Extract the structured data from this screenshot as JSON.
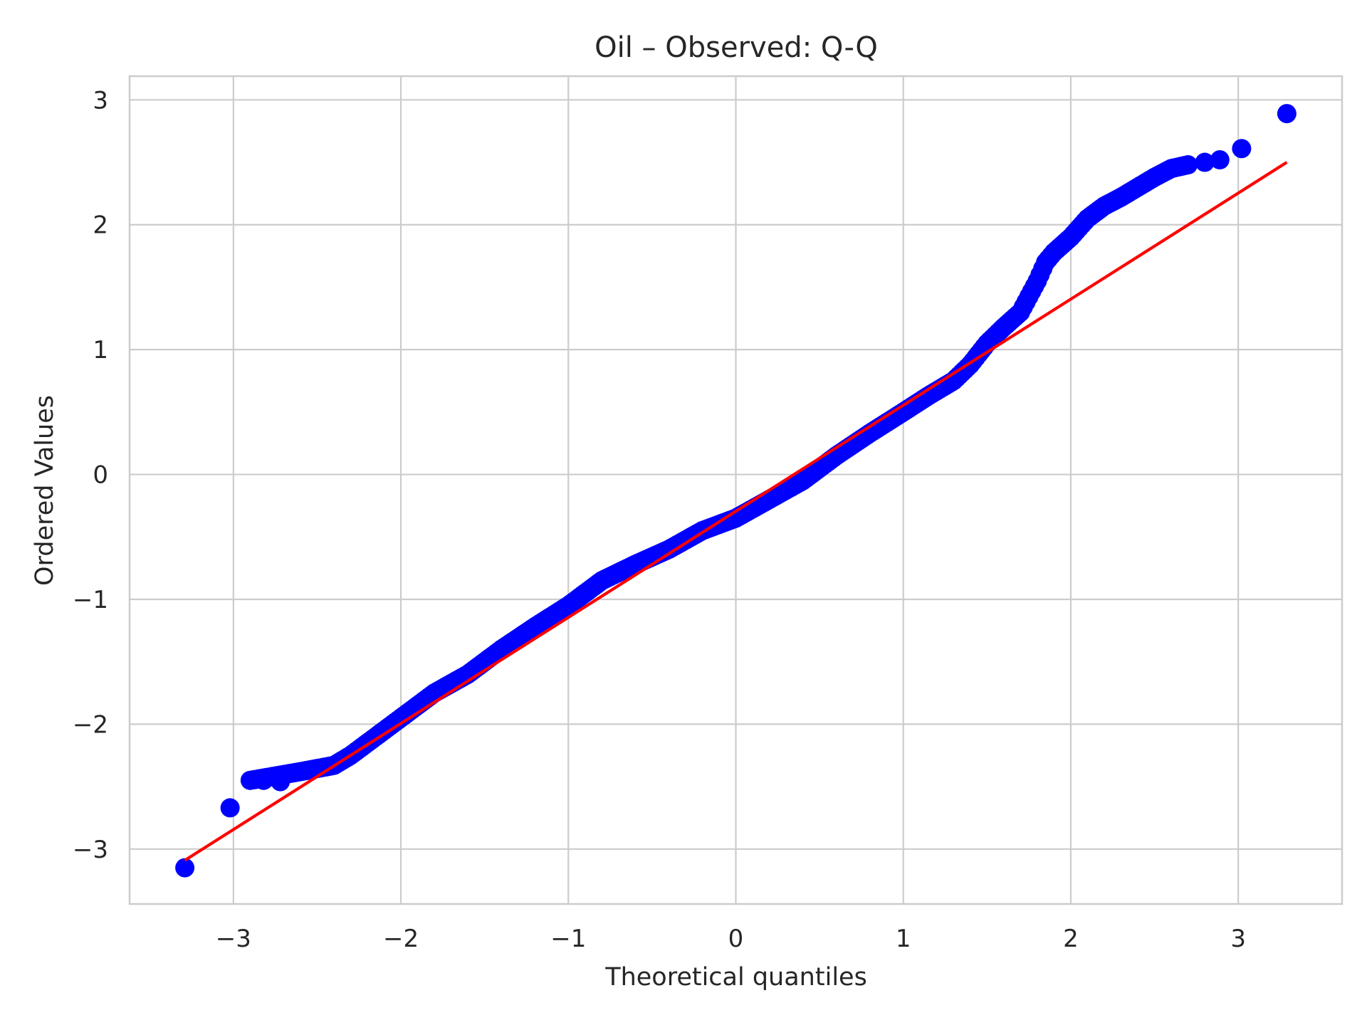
{
  "chart_data": {
    "type": "scatter",
    "title": "Oil – Observed: Q-Q",
    "xlabel": "Theoretical quantiles",
    "ylabel": "Ordered Values",
    "xlim": [
      -3.62,
      3.62
    ],
    "ylim": [
      -3.44,
      3.19
    ],
    "xticks": [
      -3,
      -2,
      -1,
      0,
      1,
      2,
      3
    ],
    "yticks": [
      -3,
      -2,
      -1,
      0,
      1,
      2,
      3
    ],
    "xtick_labels": [
      "−3",
      "−2",
      "−1",
      "0",
      "1",
      "2",
      "3"
    ],
    "ytick_labels": [
      "−3",
      "−2",
      "−1",
      "0",
      "1",
      "2",
      "3"
    ],
    "grid": true,
    "marker_color": "#0000ff",
    "line_color": "#ff0000",
    "fit_line": {
      "x": [
        -3.29,
        3.29
      ],
      "y": [
        -3.09,
        2.5
      ]
    },
    "points_curve": {
      "x": [
        -2.9,
        -2.6,
        -2.4,
        -2.3,
        -2.2,
        -2.0,
        -1.8,
        -1.6,
        -1.5,
        -1.4,
        -1.2,
        -1.0,
        -0.8,
        -0.6,
        -0.4,
        -0.2,
        0.0,
        0.2,
        0.4,
        0.6,
        0.8,
        1.0,
        1.15,
        1.3,
        1.4,
        1.5,
        1.6,
        1.7,
        1.8,
        1.85,
        1.9,
        2.0,
        2.1,
        2.2,
        2.3,
        2.4,
        2.5,
        2.6,
        2.7
      ],
      "y": [
        -2.45,
        -2.38,
        -2.33,
        -2.25,
        -2.15,
        -1.95,
        -1.75,
        -1.6,
        -1.5,
        -1.4,
        -1.22,
        -1.05,
        -0.85,
        -0.72,
        -0.6,
        -0.45,
        -0.35,
        -0.2,
        -0.05,
        0.15,
        0.33,
        0.5,
        0.63,
        0.75,
        0.88,
        1.05,
        1.18,
        1.3,
        1.55,
        1.7,
        1.78,
        1.9,
        2.05,
        2.15,
        2.22,
        2.3,
        2.38,
        2.45,
        2.48
      ]
    },
    "points_tail": {
      "x": [
        -3.29,
        -3.02,
        -2.82,
        -2.72,
        2.8,
        2.89,
        3.02,
        3.29
      ],
      "y": [
        -3.15,
        -2.67,
        -2.45,
        -2.46,
        2.5,
        2.52,
        2.61,
        2.89
      ]
    }
  }
}
